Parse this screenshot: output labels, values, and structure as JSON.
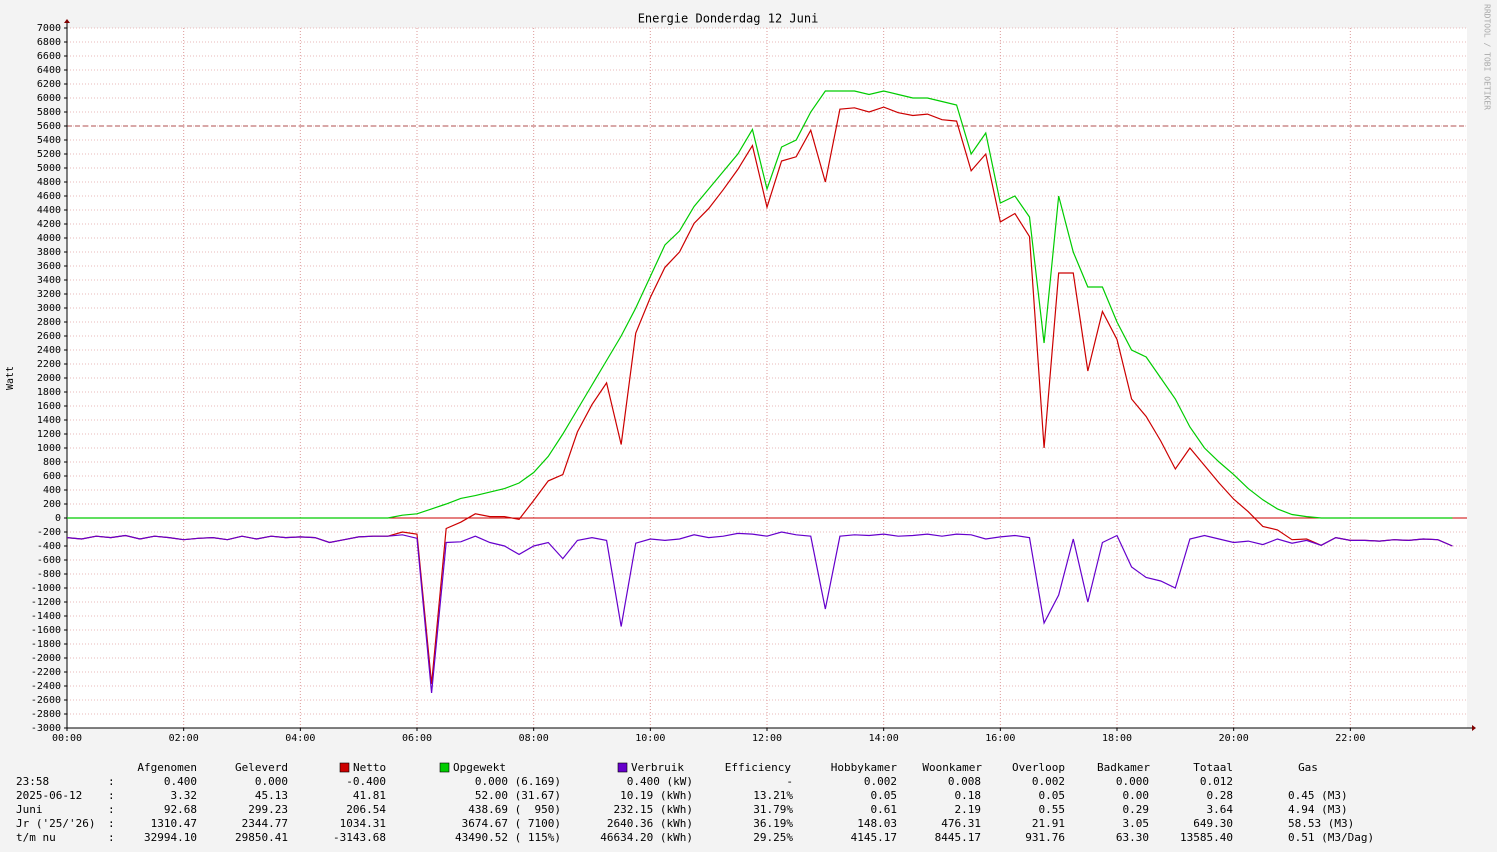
{
  "chart_data": {
    "type": "line",
    "title": "Energie Donderdag 12 Juni",
    "y_label": "Watt",
    "watermark": "RRDTOOL / TOBI OETIKER",
    "xlim": [
      0,
      24
    ],
    "ylim": [
      -3000,
      7000
    ],
    "grid": true,
    "hline": {
      "value": 5600,
      "color": "#b05050"
    },
    "xticks": [
      {
        "value": 0,
        "label": "00:00"
      },
      {
        "value": 2,
        "label": "02:00"
      },
      {
        "value": 4,
        "label": "04:00"
      },
      {
        "value": 6,
        "label": "06:00"
      },
      {
        "value": 8,
        "label": "08:00"
      },
      {
        "value": 10,
        "label": "10:00"
      },
      {
        "value": 12,
        "label": "12:00"
      },
      {
        "value": 14,
        "label": "14:00"
      },
      {
        "value": 16,
        "label": "16:00"
      },
      {
        "value": 18,
        "label": "18:00"
      },
      {
        "value": 20,
        "label": "20:00"
      },
      {
        "value": 22,
        "label": "22:00"
      }
    ],
    "yticks": [
      7000,
      6800,
      6600,
      6400,
      6200,
      6000,
      5800,
      5600,
      5400,
      5200,
      5000,
      4800,
      4600,
      4400,
      4200,
      4000,
      3800,
      3600,
      3400,
      3200,
      3000,
      2800,
      2600,
      2400,
      2200,
      2000,
      1800,
      1600,
      1400,
      1200,
      1000,
      800,
      600,
      400,
      200,
      0,
      -200,
      -400,
      -600,
      -800,
      -1000,
      -1200,
      -1400,
      -1600,
      -1800,
      -2000,
      -2200,
      -2400,
      -2600,
      -2800,
      -3000
    ],
    "x": [
      0,
      0.25,
      0.5,
      0.75,
      1,
      1.25,
      1.5,
      1.75,
      2,
      2.25,
      2.5,
      2.75,
      3,
      3.25,
      3.5,
      3.75,
      4,
      4.25,
      4.5,
      4.75,
      5,
      5.25,
      5.5,
      5.75,
      6,
      6.25,
      6.5,
      6.75,
      7,
      7.25,
      7.5,
      7.75,
      8,
      8.25,
      8.5,
      8.75,
      9,
      9.25,
      9.5,
      9.75,
      10,
      10.25,
      10.5,
      10.75,
      11,
      11.25,
      11.5,
      11.75,
      12,
      12.25,
      12.5,
      12.75,
      13,
      13.25,
      13.5,
      13.75,
      14,
      14.25,
      14.5,
      14.75,
      15,
      15.25,
      15.5,
      15.75,
      16,
      16.25,
      16.5,
      16.75,
      17,
      17.25,
      17.5,
      17.75,
      18,
      18.25,
      18.5,
      18.75,
      19,
      19.25,
      19.5,
      19.75,
      20,
      20.25,
      20.5,
      20.75,
      21,
      21.25,
      21.5,
      21.75,
      22,
      22.25,
      22.5,
      22.75,
      23,
      23.25,
      23.5,
      23.75
    ],
    "series": [
      {
        "name": "Netto",
        "color": "#cc0000",
        "values": [
          -280,
          -300,
          -260,
          -280,
          -250,
          -300,
          -260,
          -280,
          -310,
          -290,
          -280,
          -310,
          -260,
          -300,
          -260,
          -280,
          -270,
          -280,
          -350,
          -310,
          -270,
          -260,
          -260,
          -200,
          -230,
          -2370,
          -150,
          -60,
          60,
          20,
          20,
          -20,
          250,
          530,
          620,
          1230,
          1620,
          1930,
          1050,
          2640,
          3150,
          3580,
          3800,
          4210,
          4420,
          4690,
          4980,
          5320,
          4440,
          5100,
          5160,
          5540,
          4800,
          5840,
          5860,
          5800,
          5870,
          5790,
          5750,
          5770,
          5690,
          5670,
          4960,
          5200,
          4230,
          4350,
          4020,
          1000,
          3500,
          3500,
          2100,
          2950,
          2550,
          1700,
          1450,
          1100,
          700,
          1000,
          750,
          500,
          270,
          90,
          -120,
          -170,
          -310,
          -300,
          -390,
          -280,
          -320,
          -320,
          -330,
          -310,
          -320,
          -300,
          -310,
          -400
        ]
      },
      {
        "name": "Opgewekt",
        "color": "#00cc00",
        "values": [
          0,
          0,
          0,
          0,
          0,
          0,
          0,
          0,
          0,
          0,
          0,
          0,
          0,
          0,
          0,
          0,
          0,
          0,
          0,
          0,
          0,
          0,
          0,
          40,
          60,
          130,
          200,
          280,
          320,
          370,
          420,
          500,
          650,
          880,
          1200,
          1550,
          1900,
          2250,
          2600,
          3000,
          3450,
          3900,
          4100,
          4450,
          4700,
          4950,
          5200,
          5550,
          4700,
          5300,
          5400,
          5800,
          6100,
          6100,
          6100,
          6050,
          6100,
          6050,
          6000,
          6000,
          5950,
          5900,
          5200,
          5500,
          4500,
          4600,
          4300,
          2500,
          4600,
          3800,
          3300,
          3300,
          2800,
          2400,
          2300,
          2000,
          1700,
          1300,
          1000,
          800,
          620,
          420,
          260,
          130,
          50,
          20,
          0,
          0,
          0,
          0,
          0,
          0,
          0,
          0,
          0,
          0
        ]
      },
      {
        "name": "Verbruik",
        "color": "#6600cc",
        "values": [
          -280,
          -300,
          -260,
          -280,
          -250,
          -300,
          -260,
          -280,
          -310,
          -290,
          -280,
          -310,
          -260,
          -300,
          -260,
          -280,
          -270,
          -280,
          -350,
          -310,
          -270,
          -260,
          -260,
          -240,
          -290,
          -2500,
          -350,
          -340,
          -260,
          -350,
          -400,
          -520,
          -400,
          -350,
          -580,
          -320,
          -280,
          -320,
          -1550,
          -360,
          -300,
          -320,
          -300,
          -240,
          -280,
          -260,
          -220,
          -230,
          -260,
          -200,
          -240,
          -260,
          -1300,
          -260,
          -240,
          -250,
          -230,
          -260,
          -250,
          -230,
          -260,
          -230,
          -240,
          -300,
          -270,
          -250,
          -280,
          -1500,
          -1100,
          -300,
          -1200,
          -350,
          -250,
          -700,
          -850,
          -900,
          -1000,
          -300,
          -250,
          -300,
          -350,
          -330,
          -380,
          -300,
          -360,
          -320,
          -390,
          -280,
          -320,
          -320,
          -330,
          -310,
          -320,
          -300,
          -310,
          -400
        ]
      }
    ],
    "table": {
      "header": [
        "Afgenomen",
        "Geleverd",
        "Efficiency",
        "Hobbykamer",
        "Woonkamer",
        "Overloop",
        "Badkamer",
        "Totaal",
        "Gas"
      ],
      "separator": ":",
      "rows": [
        {
          "label": "23:58",
          "cells": [
            "0.400",
            "0.000",
            "-0.400",
            "0.000 (6.169)",
            "0.400 (kW)",
            "-",
            "0.002",
            "0.008",
            "0.002",
            "0.000",
            "0.012"
          ]
        },
        {
          "label": "2025-06-12",
          "cells": [
            "3.32",
            "45.13",
            "41.81",
            "52.00 (31.67)",
            "10.19 (kWh)",
            "13.21%",
            "0.05",
            "0.18",
            "0.05",
            "0.00",
            "0.28",
            "0.45 (M3)"
          ]
        },
        {
          "label": "Juni",
          "cells": [
            "92.68",
            "299.23",
            "206.54",
            "438.69 (  950)",
            "232.15 (kWh)",
            "31.79%",
            "0.61",
            "2.19",
            "0.55",
            "0.29",
            "3.64",
            "4.94 (M3)"
          ]
        },
        {
          "label": "Jr ('25/'26)",
          "cells": [
            "1310.47",
            "2344.77",
            "1034.31",
            "3674.67 ( 7100)",
            "2640.36 (kWh)",
            "36.19%",
            "148.03",
            "476.31",
            "21.91",
            "3.05",
            "649.30",
            "58.53 (M3)"
          ]
        },
        {
          "label": "t/m nu",
          "cells": [
            "32994.10",
            "29850.41",
            "-3143.68",
            "43490.52 ( 115%)",
            "46634.20 (kWh)",
            "29.25%",
            "4145.17",
            "8445.17",
            "931.76",
            "63.30",
            "13585.40",
            "0.51 (M3/Dag)"
          ]
        }
      ]
    }
  }
}
